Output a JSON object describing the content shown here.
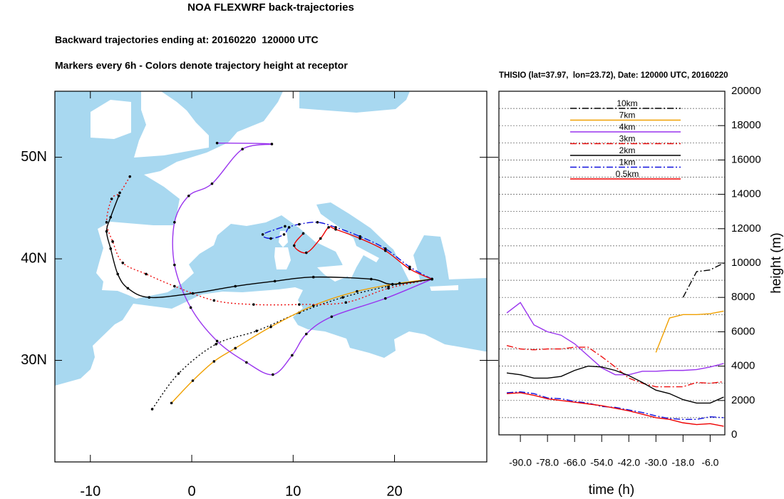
{
  "chart_data": [
    {
      "type": "trajectory",
      "title": "NOA FLEXWRF back-trajectories",
      "subtitles": [
        "Backward trajectories ending at: 20160220  120000 UTC",
        "Markers every 6h - Colors denote trajectory height at receptor"
      ],
      "xlim": [
        -13.5,
        29.1
      ],
      "ylim": [
        20,
        56.5
      ],
      "xticks": [
        -10,
        0,
        10,
        20
      ],
      "yticks": [
        {
          "value": 30,
          "label": "30N"
        },
        {
          "value": 40,
          "label": "40N"
        },
        {
          "value": 50,
          "label": "50N"
        }
      ],
      "series": [
        {
          "color": "#000000",
          "dash": "dotted",
          "x": [
            23.7,
            19.4,
            14.9,
            10.6,
            6.4,
            2.4,
            -1.3,
            -3.9
          ],
          "y": [
            38.0,
            37.3,
            36.2,
            34.7,
            32.9,
            31.6,
            28.7,
            25.2
          ]
        },
        {
          "color": "#f0a000",
          "dash": "solid",
          "x": [
            23.7,
            20.5,
            16.3,
            12.0,
            7.8,
            4.3,
            2.2,
            0.1,
            -2.0
          ],
          "y": [
            38.0,
            37.6,
            36.8,
            35.4,
            33.3,
            31.2,
            29.9,
            28.0,
            25.8
          ]
        },
        {
          "color": "#9933ee",
          "dash": "solid",
          "x": [
            23.7,
            19.1,
            13.8,
            11.3,
            9.9,
            8.0,
            5.4,
            2.5,
            -0.1,
            -1.7,
            -1.7,
            -0.3,
            2.0,
            5.0,
            7.9,
            2.5
          ],
          "y": [
            38.0,
            36.1,
            34.3,
            32.6,
            30.5,
            28.6,
            29.8,
            31.9,
            35.2,
            39.4,
            43.6,
            46.2,
            47.4,
            50.8,
            51.3,
            51.4
          ]
        },
        {
          "color": "#ee1111",
          "dash": "dotted",
          "x": [
            23.7,
            19.4,
            15.2,
            10.6,
            6.1,
            2.2,
            -1.7,
            -4.5,
            -6.8,
            -7.8,
            -8.4,
            -7.9,
            -7.1,
            -6.1
          ],
          "y": [
            38.0,
            37.1,
            35.7,
            35.5,
            35.5,
            35.9,
            37.3,
            38.5,
            39.6,
            41.7,
            43.6,
            45.9,
            46.5,
            48.1
          ]
        },
        {
          "color": "#000000",
          "dash": "solid",
          "x": [
            23.7,
            19.8,
            17.7,
            12.0,
            8.2,
            4.3,
            0.1,
            -4.2,
            -6.3,
            -7.3,
            -8.0,
            -8.4,
            -8.0,
            -7.2
          ],
          "y": [
            38.0,
            37.5,
            38.0,
            38.2,
            37.8,
            37.3,
            36.6,
            36.2,
            37.1,
            38.5,
            41.0,
            42.7,
            44.1,
            46.2
          ]
        },
        {
          "color": "#1111dd",
          "dash": "dashdot",
          "x": [
            23.7,
            21.5,
            19.1,
            16.6,
            14.2,
            12.4,
            10.6,
            9.6,
            9.1,
            7.8,
            7.0,
            9.2
          ],
          "y": [
            38.0,
            39.2,
            41.0,
            42.2,
            43.1,
            43.6,
            43.4,
            43.1,
            42.4,
            42.0,
            42.4,
            43.2
          ]
        },
        {
          "color": "#ee0000",
          "dash": "solid",
          "x": [
            23.7,
            21.5,
            19.1,
            16.6,
            14.2,
            13.5,
            12.7,
            11.3,
            10.1,
            11.0
          ],
          "y": [
            38.0,
            39.0,
            40.8,
            42.0,
            42.9,
            43.1,
            42.0,
            40.6,
            41.3,
            42.5
          ]
        }
      ]
    },
    {
      "type": "line",
      "title": "THISIO (lat=37.97,  lon=23.72), Date: 120000 UTC, 20160220",
      "xlabel": "time (h)",
      "ylabel": "height (m)",
      "x": [
        -96,
        -90,
        -84,
        -78,
        -72,
        -66,
        -60,
        -54,
        -48,
        -42,
        -36,
        -30,
        -24,
        -18,
        -12,
        -6,
        0
      ],
      "xlim": [
        -99.5,
        0.5
      ],
      "xticks": [
        {
          "value": -90,
          "label": "-90.0"
        },
        {
          "value": -78,
          "label": "-78.0"
        },
        {
          "value": -66,
          "label": "-66.0"
        },
        {
          "value": -54,
          "label": "-54.0"
        },
        {
          "value": -42,
          "label": "-42.0"
        },
        {
          "value": -30,
          "label": "-30.0"
        },
        {
          "value": -18,
          "label": "-18.0"
        },
        {
          "value": -6,
          "label": "-6.0"
        }
      ],
      "ylim": [
        0,
        20000
      ],
      "yticks": [
        0,
        2000,
        4000,
        6000,
        8000,
        10000,
        12000,
        14000,
        16000,
        18000,
        20000
      ],
      "grid": true,
      "legend": "top",
      "series": [
        {
          "name": "10km",
          "color": "#000000",
          "dash": "dashdot",
          "values": [
            null,
            null,
            null,
            null,
            null,
            null,
            null,
            null,
            null,
            null,
            null,
            null,
            null,
            8000,
            9500,
            9600,
            10000
          ]
        },
        {
          "name": "7km",
          "color": "#f0a000",
          "dash": "solid",
          "values": [
            null,
            null,
            null,
            null,
            null,
            null,
            null,
            null,
            null,
            null,
            null,
            4800,
            6800,
            7000,
            7000,
            7050,
            7200
          ]
        },
        {
          "name": "4km",
          "color": "#9933ee",
          "dash": "solid",
          "values": [
            7100,
            7700,
            6400,
            6000,
            5800,
            5300,
            4600,
            3900,
            3500,
            3500,
            3700,
            3700,
            3750,
            3750,
            3800,
            3950,
            4150
          ]
        },
        {
          "name": "3km",
          "color": "#ee1111",
          "dash": "dashdot",
          "values": [
            5200,
            5000,
            4950,
            5000,
            5000,
            5100,
            5100,
            4550,
            3950,
            3300,
            3000,
            2800,
            2800,
            2800,
            3050,
            3000,
            3100
          ]
        },
        {
          "name": "2km",
          "color": "#000000",
          "dash": "solid",
          "values": [
            3600,
            3500,
            3300,
            3300,
            3400,
            3750,
            4000,
            3950,
            3750,
            3450,
            3050,
            2600,
            2400,
            2050,
            1850,
            1850,
            2200
          ]
        },
        {
          "name": "1km",
          "color": "#1111dd",
          "dash": "dashdot",
          "values": [
            2450,
            2500,
            2400,
            2150,
            2100,
            1950,
            1850,
            1650,
            1600,
            1450,
            1300,
            1100,
            950,
            900,
            900,
            1050,
            1000
          ]
        },
        {
          "name": "0.5km",
          "color": "#ee0000",
          "dash": "solid",
          "values": [
            2400,
            2450,
            2300,
            2100,
            2000,
            1900,
            1800,
            1700,
            1550,
            1400,
            1200,
            1000,
            900,
            700,
            600,
            650,
            500
          ]
        }
      ]
    }
  ]
}
